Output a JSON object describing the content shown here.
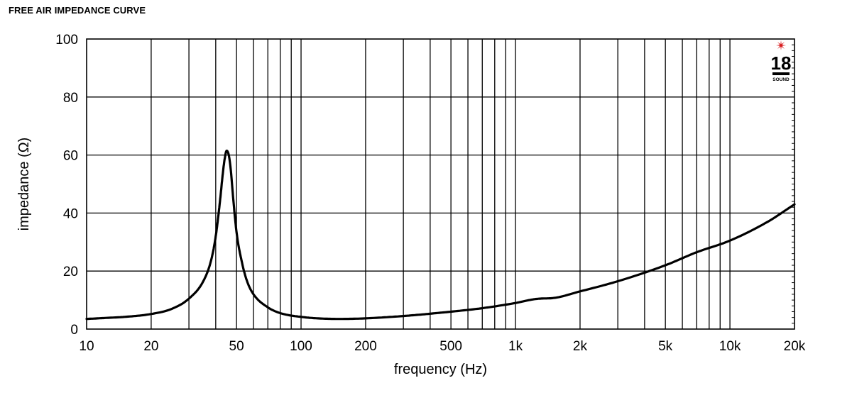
{
  "chart_data": {
    "type": "line",
    "title": "FREE AIR IMPEDANCE CURVE",
    "xlabel": "frequency (Hz)",
    "ylabel": "impedance (Ω)",
    "x_scale": "log",
    "xlim": [
      10,
      20000
    ],
    "ylim": [
      0,
      100
    ],
    "grid": true,
    "x_ticks": [
      {
        "value": 10,
        "label": "10"
      },
      {
        "value": 20,
        "label": "20"
      },
      {
        "value": 50,
        "label": "50"
      },
      {
        "value": 100,
        "label": "100"
      },
      {
        "value": 200,
        "label": "200"
      },
      {
        "value": 500,
        "label": "500"
      },
      {
        "value": 1000,
        "label": "1k"
      },
      {
        "value": 2000,
        "label": "2k"
      },
      {
        "value": 5000,
        "label": "5k"
      },
      {
        "value": 10000,
        "label": "10k"
      },
      {
        "value": 20000,
        "label": "20k"
      }
    ],
    "y_ticks": [
      0,
      20,
      40,
      60,
      80,
      100
    ],
    "series": [
      {
        "color": "#000000",
        "x": [
          10,
          12,
          15,
          20,
          25,
          30,
          35,
          38,
          40,
          42,
          43,
          44,
          45,
          46,
          47,
          48,
          50,
          53,
          56,
          60,
          70,
          80,
          100,
          120,
          150,
          200,
          300,
          400,
          500,
          700,
          1000,
          1200,
          1300,
          1500,
          2000,
          3000,
          5000,
          7000,
          10000,
          15000,
          20000
        ],
        "y": [
          3.5,
          3.8,
          4.2,
          5.2,
          7.0,
          10.5,
          16.5,
          23.5,
          32.0,
          45.0,
          52.5,
          58.5,
          61.5,
          60.0,
          55.0,
          47.0,
          33.5,
          23.0,
          16.5,
          12.0,
          7.5,
          5.5,
          4.2,
          3.7,
          3.5,
          3.7,
          4.5,
          5.3,
          6.0,
          7.2,
          9.0,
          10.2,
          10.5,
          10.7,
          13.0,
          16.5,
          22.0,
          26.5,
          30.5,
          37.0,
          43.0
        ]
      }
    ],
    "logo": {
      "text_main": "18",
      "text_sub": "SOUND",
      "accent": "#d7191c"
    }
  }
}
